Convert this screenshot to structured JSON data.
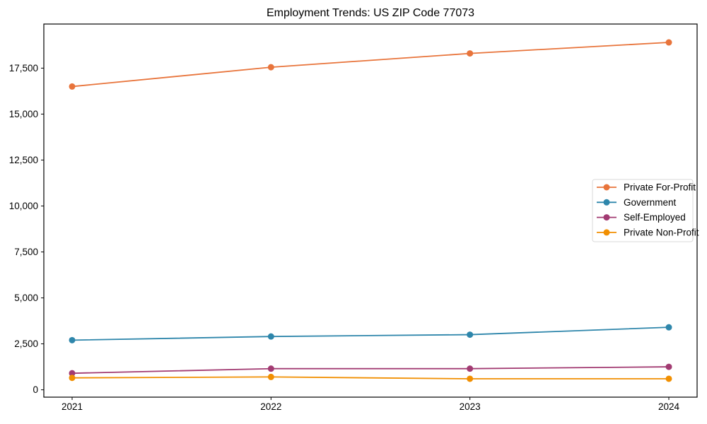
{
  "figure": {
    "title": "Employment Trends: US ZIP Code 77073"
  },
  "chart_data": {
    "type": "line",
    "title": "Employment Trends: US ZIP Code 77073",
    "xlabel": "",
    "ylabel": "",
    "x": [
      "2021",
      "2022",
      "2023",
      "2024"
    ],
    "series": [
      {
        "name": "Private For-Profit",
        "color": "#e8743b",
        "values": [
          16500,
          17550,
          18300,
          18900
        ]
      },
      {
        "name": "Government",
        "color": "#2e86ab",
        "values": [
          2700,
          2900,
          3000,
          3400
        ]
      },
      {
        "name": "Self-Employed",
        "color": "#a23b72",
        "values": [
          900,
          1150,
          1150,
          1250
        ]
      },
      {
        "name": "Private Non-Profit",
        "color": "#f18f01",
        "values": [
          650,
          700,
          600,
          600
        ]
      }
    ],
    "yticks": [
      0,
      2500,
      5000,
      7500,
      10000,
      12500,
      15000,
      17500
    ],
    "ytick_labels": [
      "0",
      "2,500",
      "5,000",
      "7,500",
      "10,000",
      "12,500",
      "15,000",
      "17,500"
    ],
    "ylim": [
      -400,
      19900
    ],
    "grid": false,
    "legend_position": "center right",
    "marker": "circle",
    "axis_color": "#000000",
    "tick_label_color": "#000000",
    "legend_border_color": "#d9d9d9",
    "legend_background": "#ffffff",
    "plot_background": "#ffffff"
  }
}
